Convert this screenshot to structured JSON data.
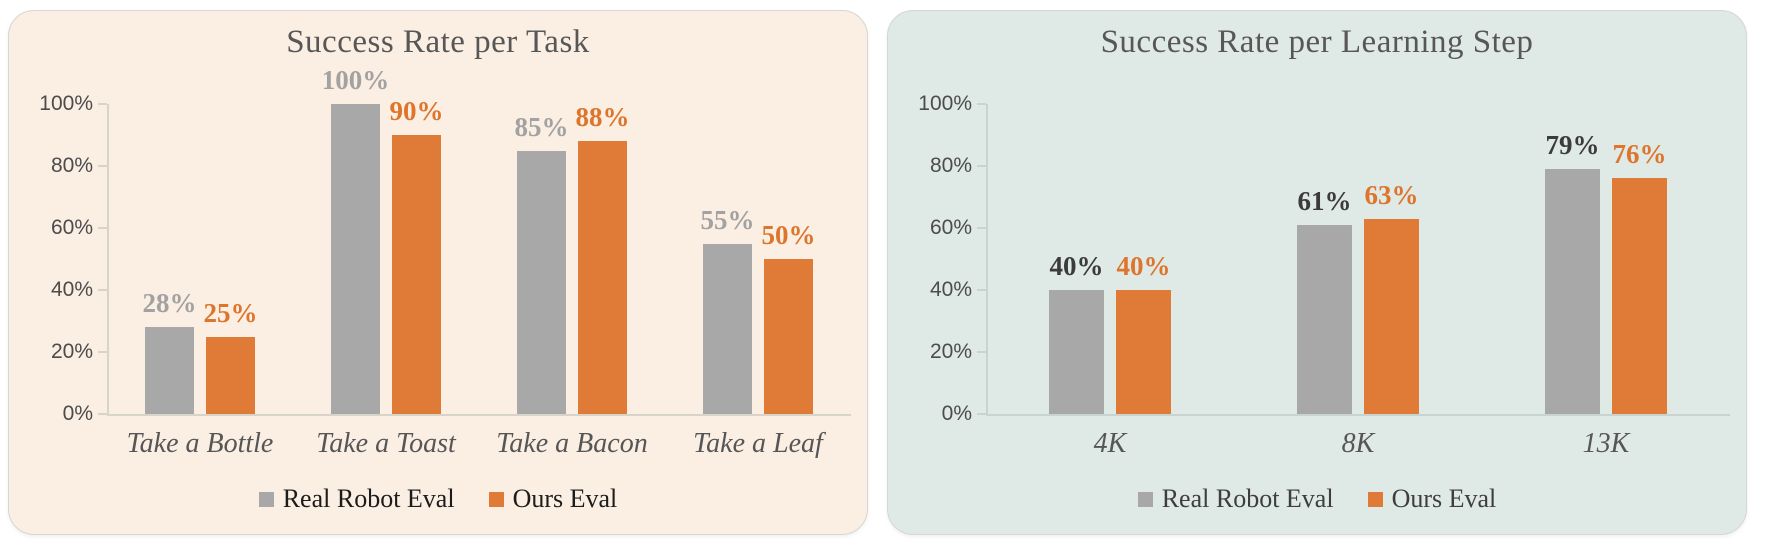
{
  "chart_data": [
    {
      "type": "bar",
      "title": "Success Rate per Task",
      "categories": [
        "Take a Bottle",
        "Take a Toast",
        "Take a Bacon",
        "Take a Leaf"
      ],
      "series": [
        {
          "name": "Real Robot Eval",
          "values": [
            28,
            100,
            85,
            55
          ],
          "color": "#a8a8a8",
          "label_color": "#a2a2a2"
        },
        {
          "name": "Ours Eval",
          "values": [
            25,
            90,
            88,
            50
          ],
          "color": "#e07b37",
          "label_color": "#dd752c"
        }
      ],
      "value_suffix": "%",
      "y_ticks": [
        100,
        80,
        60,
        40,
        20,
        0
      ],
      "ylim": [
        0,
        100
      ],
      "grid": false,
      "legend_position": "bottom",
      "panel_bg": "#fbeee3",
      "axis_color": "#d9d4ca",
      "tick_label_color": "#4c4c4c",
      "title_color": "#575757",
      "category_color": "#565656",
      "legend_text_color": "#1c1c1c"
    },
    {
      "type": "bar",
      "title": "Success Rate per Learning Step",
      "categories": [
        "4K",
        "8K",
        "13K"
      ],
      "series": [
        {
          "name": "Real Robot Eval",
          "values": [
            40,
            61,
            79
          ],
          "color": "#a8a8a8",
          "label_color": "#3b3b3b"
        },
        {
          "name": "Ours Eval",
          "values": [
            40,
            63,
            76
          ],
          "color": "#e07b37",
          "label_color": "#dd752c"
        }
      ],
      "value_suffix": "%",
      "y_ticks": [
        100,
        80,
        60,
        40,
        20,
        0
      ],
      "ylim": [
        0,
        100
      ],
      "grid": false,
      "legend_position": "bottom",
      "panel_bg": "#dfe9e6",
      "axis_color": "#c8d4d0",
      "tick_label_color": "#4c4c4c",
      "title_color": "#575757",
      "category_color": "#565656",
      "legend_text_color": "#3e3e3e"
    }
  ]
}
